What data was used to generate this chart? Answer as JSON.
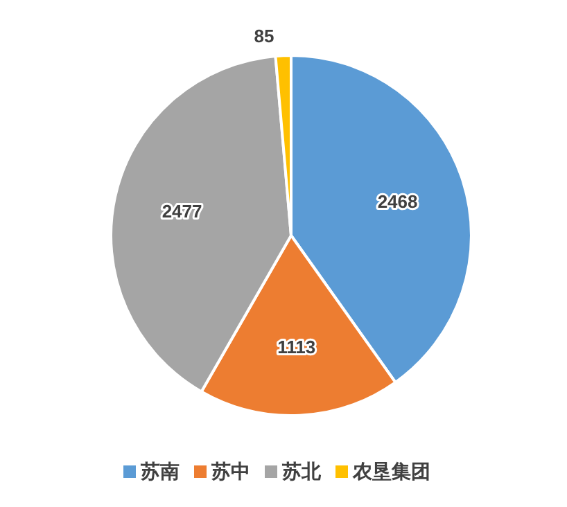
{
  "chart_data": {
    "type": "pie",
    "categories": [
      "苏南",
      "苏中",
      "苏北",
      "农垦集团"
    ],
    "values": [
      2468,
      1113,
      2477,
      85
    ],
    "colors": [
      "#5b9bd5",
      "#ed7d31",
      "#a5a5a5",
      "#ffc000"
    ],
    "data_labels": true,
    "legend": "bottom"
  }
}
